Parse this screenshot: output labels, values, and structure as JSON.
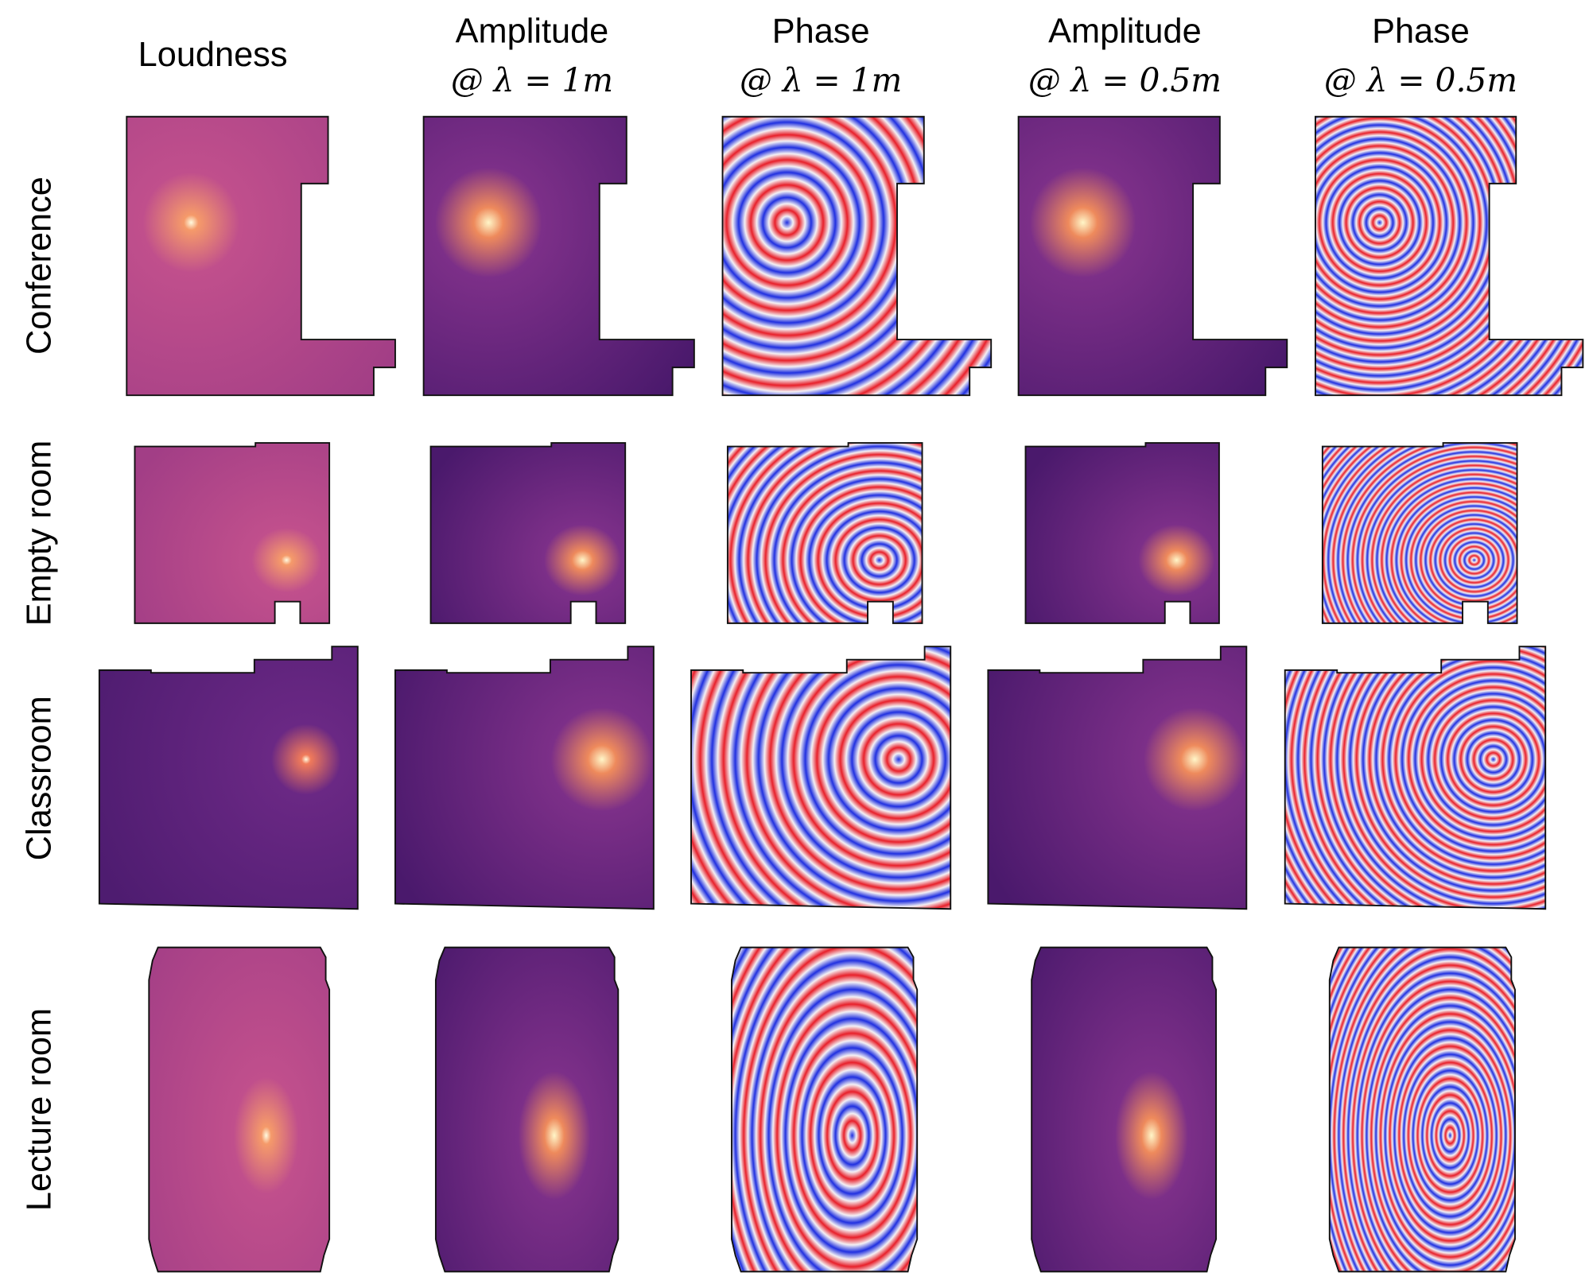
{
  "columns": [
    {
      "title": "Loudness"
    },
    {
      "title": "Amplitude",
      "subtitle": "@ λ = 1m"
    },
    {
      "title": "Phase",
      "subtitle": "@ λ = 1m"
    },
    {
      "title": "Amplitude",
      "subtitle": "@ λ = 0.5m"
    },
    {
      "title": "Phase",
      "subtitle": "@ λ = 0.5m"
    }
  ],
  "rows": [
    {
      "label": "Conference"
    },
    {
      "label": "Empty room"
    },
    {
      "label": "Classroom"
    },
    {
      "label": "Lecture room"
    }
  ]
}
